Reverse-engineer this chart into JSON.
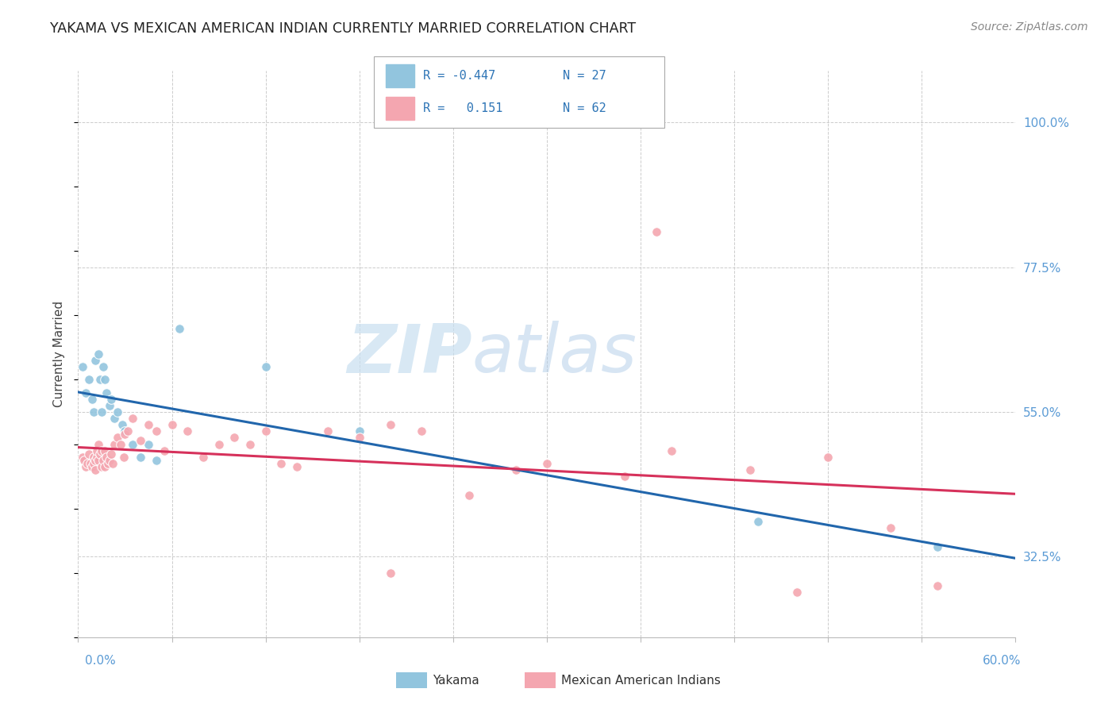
{
  "title": "YAKAMA VS MEXICAN AMERICAN INDIAN CURRENTLY MARRIED CORRELATION CHART",
  "source": "Source: ZipAtlas.com",
  "ylabel": "Currently Married",
  "xmin": 0.0,
  "xmax": 60.0,
  "ymin": 20.0,
  "ymax": 108.0,
  "yticks": [
    32.5,
    55.0,
    77.5,
    100.0
  ],
  "ytick_labels": [
    "32.5%",
    "55.0%",
    "77.5%",
    "100.0%"
  ],
  "watermark_zip": "ZIP",
  "watermark_atlas": "atlas",
  "legend_text1": "R = -0.447  N = 27",
  "legend_text2": "R =   0.151  N = 62",
  "yakama_color": "#92c5de",
  "mexican_color": "#f4a6b0",
  "trendline_blue": "#2166ac",
  "trendline_pink": "#d6315b",
  "background": "#ffffff",
  "grid_color": "#cccccc",
  "yakama_x": [
    0.3,
    0.5,
    0.7,
    0.9,
    1.0,
    1.1,
    1.3,
    1.4,
    1.5,
    1.6,
    1.7,
    1.8,
    2.0,
    2.1,
    2.3,
    2.5,
    2.8,
    3.0,
    3.5,
    4.0,
    5.0,
    6.5,
    12.0,
    18.0,
    43.5,
    55.0,
    4.5
  ],
  "yakama_y": [
    62.0,
    58.0,
    60.0,
    57.0,
    55.0,
    63.0,
    64.0,
    60.0,
    55.0,
    62.0,
    60.0,
    58.0,
    56.0,
    57.0,
    54.0,
    55.0,
    53.0,
    52.0,
    50.0,
    48.0,
    47.5,
    68.0,
    62.0,
    52.0,
    38.0,
    34.0,
    50.0
  ],
  "mexican_x": [
    0.3,
    0.4,
    0.5,
    0.6,
    0.7,
    0.8,
    0.9,
    1.0,
    1.0,
    1.1,
    1.1,
    1.2,
    1.2,
    1.3,
    1.3,
    1.4,
    1.5,
    1.5,
    1.6,
    1.7,
    1.7,
    1.8,
    1.9,
    2.0,
    2.1,
    2.2,
    2.3,
    2.5,
    2.7,
    2.9,
    3.0,
    3.2,
    3.5,
    4.0,
    4.5,
    5.0,
    5.5,
    6.0,
    7.0,
    8.0,
    9.0,
    10.0,
    11.0,
    12.0,
    13.0,
    14.0,
    16.0,
    18.0,
    20.0,
    22.0,
    25.0,
    28.0,
    30.0,
    35.0,
    38.0,
    43.0,
    48.0,
    52.0,
    37.0,
    46.0,
    55.0,
    20.0
  ],
  "mexican_y": [
    48.0,
    47.5,
    46.5,
    47.0,
    48.5,
    47.0,
    46.5,
    47.0,
    48.0,
    47.5,
    46.0,
    48.0,
    49.0,
    50.0,
    47.5,
    48.5,
    46.5,
    49.0,
    47.5,
    46.5,
    49.0,
    48.0,
    47.0,
    47.5,
    48.5,
    47.0,
    50.0,
    51.0,
    50.0,
    48.0,
    51.5,
    52.0,
    54.0,
    50.5,
    53.0,
    52.0,
    49.0,
    53.0,
    52.0,
    48.0,
    50.0,
    51.0,
    50.0,
    52.0,
    47.0,
    46.5,
    52.0,
    51.0,
    53.0,
    52.0,
    42.0,
    46.0,
    47.0,
    45.0,
    49.0,
    46.0,
    48.0,
    37.0,
    83.0,
    27.0,
    28.0,
    30.0
  ]
}
